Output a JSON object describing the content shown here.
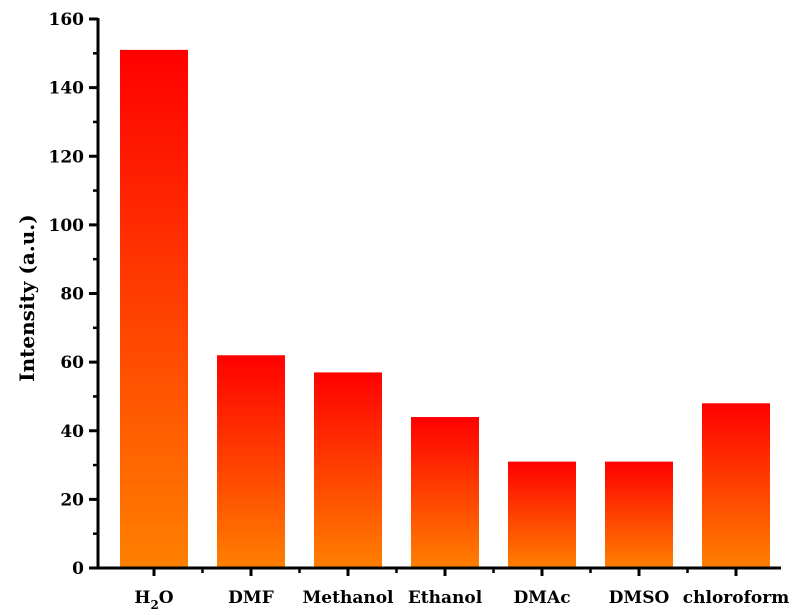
{
  "chart_data": {
    "type": "bar",
    "title": "",
    "xlabel": "",
    "ylabel": "Intensity (a.u.)",
    "ylim": [
      0,
      160
    ],
    "yticks": [
      0,
      20,
      40,
      60,
      80,
      100,
      120,
      140,
      160
    ],
    "grid": false,
    "legend": "none",
    "categories": [
      {
        "label": "H2O",
        "main": "H",
        "sub": "2",
        "tail": "O"
      },
      {
        "label": "DMF"
      },
      {
        "label": "Methanol"
      },
      {
        "label": "Ethanol"
      },
      {
        "label": "DMAc"
      },
      {
        "label": "DMSO"
      },
      {
        "label": "chloroform"
      }
    ],
    "values": [
      151,
      62,
      57,
      44,
      31,
      31,
      48
    ],
    "colors": {
      "bar_top": "#ff0000",
      "bar_bottom": "#ff8000",
      "axis": "#000000"
    }
  }
}
